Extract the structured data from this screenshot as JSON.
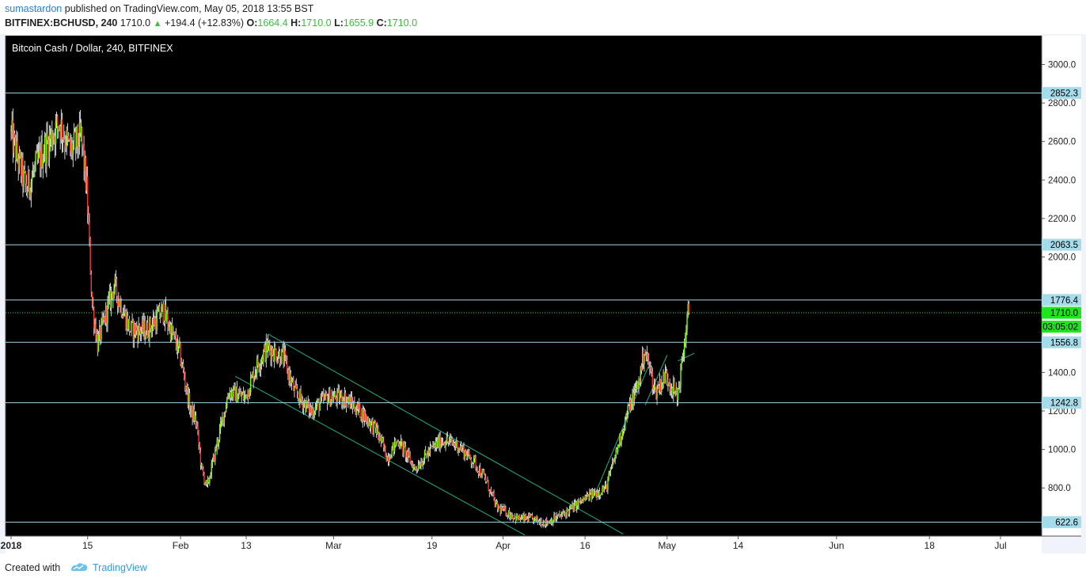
{
  "header": {
    "author": "sumastardon",
    "published_text": "published on TradingView.com, May 05, 2018 13:55 BST",
    "symbol": "BITFINEX:BCHUSD, 240",
    "last": "1710.0",
    "change": "+194.4 (+12.83%)",
    "o_label": "O:",
    "o_value": "1664.4",
    "h_label": "H:",
    "h_value": "1710.0",
    "l_label": "L:",
    "l_value": "1655.9",
    "c_label": "C:",
    "c_value": "1710.0"
  },
  "footer": {
    "created_with": "Created with",
    "brand": "TradingView"
  },
  "colors": {
    "background": "#000000",
    "up": "#7cfc00",
    "down": "#ff3030",
    "wick": "#ffffff",
    "level_line": "#9fd6e6",
    "level_badge": "#a6dcea",
    "trend_line": "#1fae8a",
    "last_price": "#1ee51e",
    "price_axis_bg": "#ffffff"
  },
  "chart_data": {
    "type": "candlestick",
    "title": "Bitcoin Cash / Dollar, 240, BITFINEX",
    "y_ticks": [
      "3000.0",
      "2800.0",
      "2600.0",
      "2400.0",
      "2200.0",
      "2000.0",
      "1400.0",
      "1200.0",
      "1000.0",
      "800.0"
    ],
    "x_ticks": [
      "2018",
      "15",
      "Feb",
      "13",
      "Mar",
      "19",
      "Apr",
      "16",
      "May",
      "14",
      "Jun",
      "18",
      "Jul"
    ],
    "ylim": [
      550,
      3150
    ],
    "horizontal_levels": [
      "2852.3",
      "2063.5",
      "1776.4",
      "1556.8",
      "1242.8",
      "622.6"
    ],
    "last_price": "1710.0",
    "countdown": "03:05:02",
    "price_path": [
      [
        "2018-01-01",
        2650
      ],
      [
        "2018-01-04",
        2350
      ],
      [
        "2018-01-07",
        2550
      ],
      [
        "2018-01-10",
        2700
      ],
      [
        "2018-01-12",
        2550
      ],
      [
        "2018-01-14",
        2620
      ],
      [
        "2018-01-15",
        2350
      ],
      [
        "2018-01-16",
        1750
      ],
      [
        "2018-01-17",
        1550
      ],
      [
        "2018-01-18",
        1650
      ],
      [
        "2018-01-20",
        1850
      ],
      [
        "2018-01-23",
        1620
      ],
      [
        "2018-01-26",
        1620
      ],
      [
        "2018-01-29",
        1720
      ],
      [
        "2018-02-01",
        1500
      ],
      [
        "2018-02-03",
        1200
      ],
      [
        "2018-02-04",
        1150
      ],
      [
        "2018-02-05",
        900
      ],
      [
        "2018-02-06",
        800
      ],
      [
        "2018-02-08",
        1050
      ],
      [
        "2018-02-10",
        1300
      ],
      [
        "2018-02-13",
        1270
      ],
      [
        "2018-02-15",
        1430
      ],
      [
        "2018-02-17",
        1530
      ],
      [
        "2018-02-20",
        1480
      ],
      [
        "2018-02-22",
        1300
      ],
      [
        "2018-02-25",
        1200
      ],
      [
        "2018-02-28",
        1270
      ],
      [
        "2018-03-03",
        1270
      ],
      [
        "2018-03-06",
        1200
      ],
      [
        "2018-03-09",
        1100
      ],
      [
        "2018-03-11",
        960
      ],
      [
        "2018-03-13",
        1050
      ],
      [
        "2018-03-16",
        900
      ],
      [
        "2018-03-19",
        1000
      ],
      [
        "2018-03-21",
        1050
      ],
      [
        "2018-03-24",
        1020
      ],
      [
        "2018-03-27",
        930
      ],
      [
        "2018-03-29",
        840
      ],
      [
        "2018-03-31",
        700
      ],
      [
        "2018-04-04",
        640
      ],
      [
        "2018-04-06",
        640
      ],
      [
        "2018-04-09",
        620
      ],
      [
        "2018-04-12",
        660
      ],
      [
        "2018-04-14",
        700
      ],
      [
        "2018-04-17",
        760
      ],
      [
        "2018-04-20",
        800
      ],
      [
        "2018-04-22",
        1000
      ],
      [
        "2018-04-24",
        1200
      ],
      [
        "2018-04-26",
        1350
      ],
      [
        "2018-04-27",
        1520
      ],
      [
        "2018-04-28",
        1420
      ],
      [
        "2018-04-29",
        1300
      ],
      [
        "2018-05-01",
        1390
      ],
      [
        "2018-05-02",
        1330
      ],
      [
        "2018-05-03",
        1270
      ],
      [
        "2018-05-04",
        1470
      ],
      [
        "2018-05-05",
        1710
      ]
    ]
  }
}
